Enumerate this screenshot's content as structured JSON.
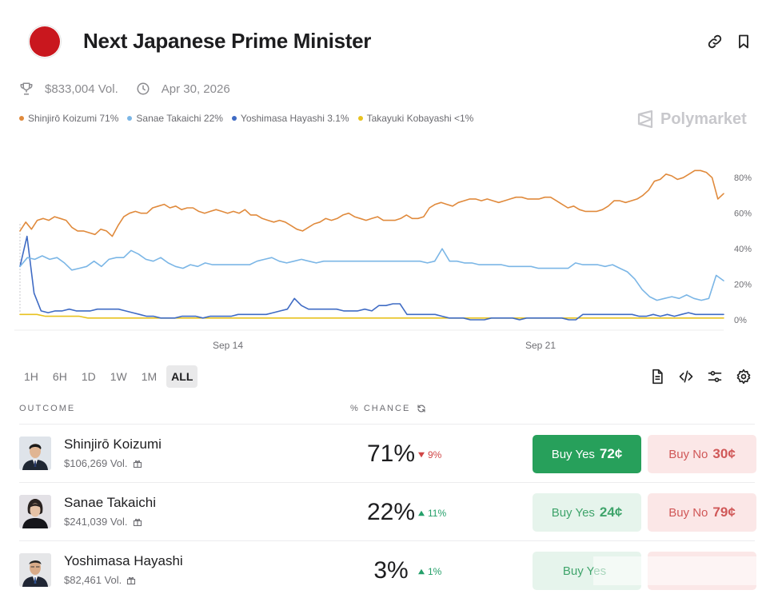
{
  "header": {
    "title": "Next Japanese Prime Minister",
    "volume": "$833,004 Vol.",
    "date": "Apr 30, 2026"
  },
  "brand": {
    "name": "Polymarket"
  },
  "legend": [
    {
      "label": "Shinjirō Koizumi 71%",
      "color": "#e08a3c"
    },
    {
      "label": "Sanae Takaichi 22%",
      "color": "#7bb6e6"
    },
    {
      "label": "Yoshimasa Hayashi 3.1%",
      "color": "#3f6bc4"
    },
    {
      "label": "Takayuki Kobayashi <1%",
      "color": "#e8c21f"
    }
  ],
  "chart_data": {
    "type": "line",
    "x_ticks": [
      "Sep 14",
      "Sep 21"
    ],
    "y_ticks": [
      "80%",
      "60%",
      "40%",
      "20%",
      "0%"
    ],
    "ylim": [
      0,
      90
    ],
    "grid": false,
    "legend_position": "top-left",
    "series": [
      {
        "name": "Shinjirō Koizumi",
        "color": "#e08a3c",
        "values": [
          50,
          55,
          51,
          56,
          57,
          56,
          58,
          57,
          56,
          52,
          50,
          50,
          49,
          48,
          51,
          50,
          47,
          53,
          58,
          60,
          61,
          60,
          60,
          63,
          64,
          65,
          63,
          64,
          62,
          63,
          63,
          61,
          60,
          61,
          62,
          61,
          60,
          61,
          60,
          62,
          59,
          59,
          57,
          56,
          55,
          56,
          55,
          53,
          51,
          50,
          52,
          54,
          55,
          57,
          56,
          57,
          59,
          60,
          58,
          57,
          56,
          57,
          58,
          56,
          56,
          56,
          57,
          59,
          57,
          57,
          58,
          63,
          65,
          66,
          65,
          64,
          66,
          67,
          68,
          68,
          67,
          68,
          67,
          66,
          67,
          68,
          69,
          69,
          68,
          68,
          68,
          69,
          69,
          67,
          65,
          63,
          64,
          62,
          61,
          61,
          61,
          62,
          64,
          67,
          67,
          66,
          67,
          68,
          70,
          73,
          78,
          79,
          82,
          81,
          79,
          80,
          82,
          84,
          84,
          83,
          80,
          68,
          71
        ]
      },
      {
        "name": "Sanae Takaichi",
        "color": "#7bb6e6",
        "values": [
          30,
          35,
          34,
          36,
          34,
          35,
          32,
          28,
          29,
          30,
          33,
          30,
          34,
          35,
          35,
          39,
          37,
          34,
          33,
          35,
          32,
          30,
          29,
          31,
          30,
          32,
          31,
          31,
          31,
          31,
          31,
          31,
          33,
          34,
          35,
          33,
          32,
          33,
          34,
          33,
          32,
          33,
          33,
          33,
          33,
          33,
          33,
          33,
          33,
          33,
          33,
          33,
          33,
          33,
          33,
          32,
          33,
          40,
          33,
          33,
          32,
          32,
          31,
          31,
          31,
          31,
          30,
          30,
          30,
          30,
          29,
          29,
          29,
          29,
          29,
          32,
          31,
          31,
          31,
          30,
          31,
          29,
          27,
          23,
          17,
          13,
          11,
          12,
          13,
          12,
          14,
          12,
          11,
          12,
          25,
          22
        ]
      },
      {
        "name": "Yoshimasa Hayashi",
        "color": "#3f6bc4",
        "values": [
          30,
          47,
          15,
          5,
          4,
          5,
          5,
          6,
          5,
          5,
          5,
          6,
          6,
          6,
          6,
          5,
          4,
          3,
          2,
          2,
          1,
          1,
          1,
          2,
          2,
          2,
          1,
          2,
          2,
          2,
          2,
          3,
          3,
          3,
          3,
          3,
          4,
          5,
          6,
          12,
          8,
          6,
          6,
          6,
          6,
          6,
          5,
          5,
          5,
          6,
          5,
          8,
          8,
          9,
          9,
          3,
          3,
          3,
          3,
          3,
          2,
          1,
          1,
          1,
          0,
          0,
          0,
          1,
          1,
          1,
          1,
          0,
          1,
          1,
          1,
          1,
          1,
          1,
          0,
          0,
          3,
          3,
          3,
          3,
          3,
          3,
          3,
          3,
          2,
          2,
          3,
          2,
          3,
          2,
          3,
          4,
          3,
          3,
          3,
          3,
          3
        ]
      },
      {
        "name": "Takayuki Kobayashi",
        "color": "#e8c21f",
        "values": [
          3,
          3,
          3,
          2,
          2,
          2,
          2,
          2,
          1,
          1,
          1,
          1,
          1,
          1,
          1,
          1,
          1,
          1,
          1,
          1,
          1,
          1,
          1,
          1,
          1,
          1,
          1,
          1,
          1,
          1,
          1,
          1,
          1,
          1,
          1,
          1,
          1,
          1,
          1,
          1,
          1,
          1,
          1,
          1,
          1,
          1,
          1,
          1,
          1,
          1,
          1,
          1,
          1,
          1,
          1,
          1,
          1,
          1,
          1,
          1,
          1,
          1,
          1,
          1,
          1,
          1,
          1,
          1,
          1,
          1,
          1,
          1,
          1,
          1,
          1,
          1,
          1,
          1,
          1,
          1,
          1,
          1,
          1,
          1
        ]
      }
    ]
  },
  "time_ranges": [
    {
      "label": "1H"
    },
    {
      "label": "6H"
    },
    {
      "label": "1D"
    },
    {
      "label": "1W"
    },
    {
      "label": "1M"
    },
    {
      "label": "ALL",
      "active": true
    }
  ],
  "table": {
    "col_outcome": "OUTCOME",
    "col_chance": "% CHANCE",
    "rows": [
      {
        "name": "Shinjirō Koizumi",
        "volume": "$106,269 Vol.",
        "chance": "71%",
        "delta": "9%",
        "delta_dir": "down",
        "yes_label": "Buy Yes",
        "yes_price": "72¢",
        "no_label": "Buy No",
        "no_price": "30¢"
      },
      {
        "name": "Sanae Takaichi",
        "volume": "$241,039 Vol.",
        "chance": "22%",
        "delta": "11%",
        "delta_dir": "up",
        "yes_label": "Buy Yes",
        "yes_price": "24¢",
        "no_label": "Buy No",
        "no_price": "79¢"
      },
      {
        "name": "Yoshimasa Hayashi",
        "volume": "$82,461 Vol.",
        "chance": "3%",
        "delta": "1%",
        "delta_dir": "up",
        "yes_label": "Buy Yes",
        "yes_price": "",
        "no_label": "",
        "no_price": ""
      }
    ]
  }
}
